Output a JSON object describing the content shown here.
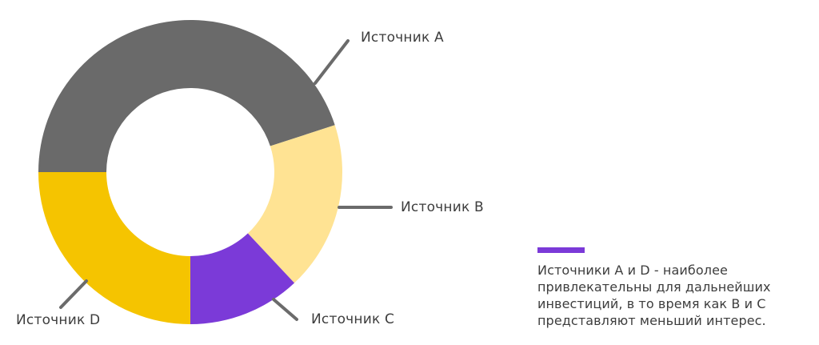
{
  "style": {
    "background": "#ffffff",
    "text_color": "#3d3d3d",
    "leader_line_color": "#6b6b6b",
    "accent_color": "#7b3ad8"
  },
  "chart_data": {
    "type": "donut",
    "title": "",
    "categories": [
      "Источник A",
      "Источник B",
      "Источник C",
      "Источник D"
    ],
    "values": [
      45,
      18,
      12,
      25
    ],
    "unit": "% (estimated from arc angles, no numeric labels shown)",
    "start_angle_deg": 180,
    "direction": "clockwise",
    "inner_radius_ratio": 0.55,
    "legend_position": "outside-callouts",
    "segments": [
      {
        "id": "a",
        "label": "Источник A",
        "value": 45,
        "color": "#6a6a6a"
      },
      {
        "id": "b",
        "label": "Источник B",
        "value": 18,
        "color": "#ffe393"
      },
      {
        "id": "c",
        "label": "Источник C",
        "value": 12,
        "color": "#7b3ad8"
      },
      {
        "id": "d",
        "label": "Источник D",
        "value": 25,
        "color": "#f5c400"
      }
    ]
  },
  "annotation": {
    "accent_color": "#7b3ad8",
    "lines": [
      "Источники A и D - наиболее",
      "привлекательны для дальнейших",
      "инвестиций, в то время как B и C",
      "представляют меньший интерес."
    ],
    "text": "Источники A и D - наиболее привлекательны для дальнейших инвестиций, в то время как B и C представляют меньший интерес."
  }
}
